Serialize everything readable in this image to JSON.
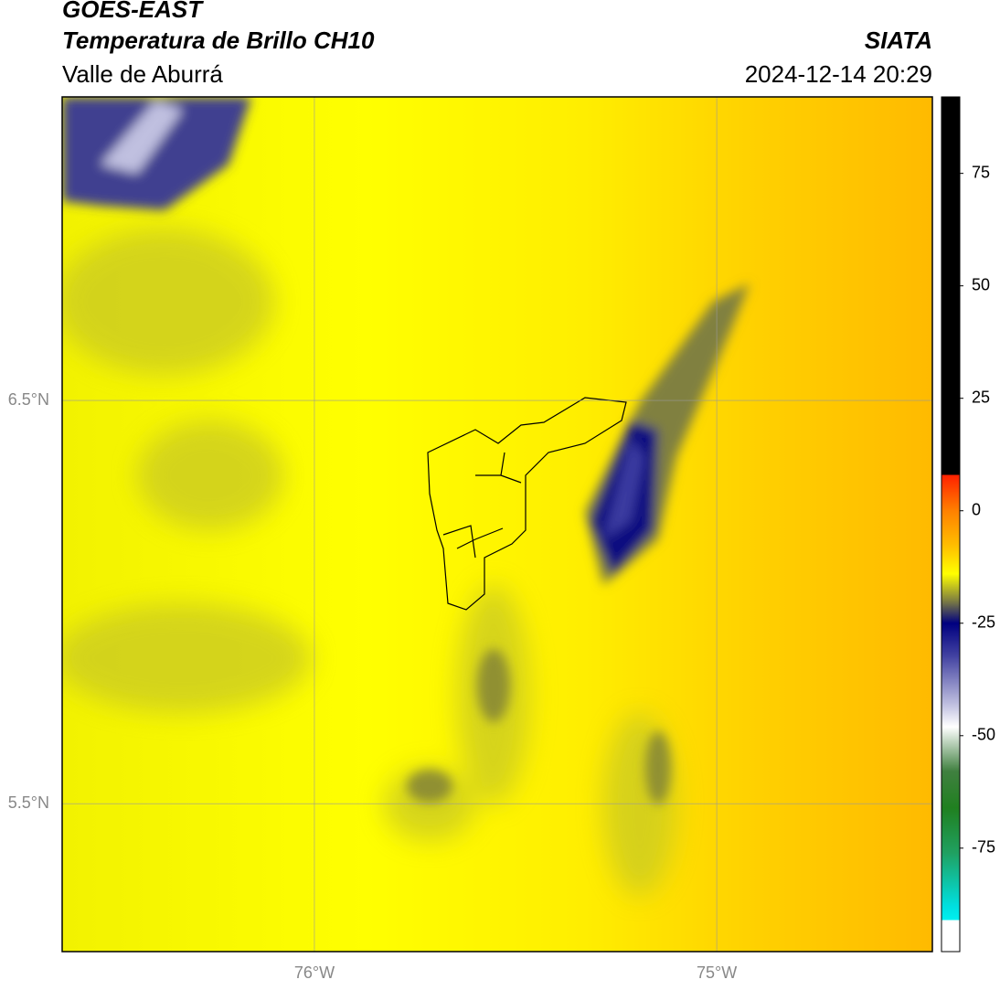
{
  "header": {
    "title": "GOES-EAST",
    "subtitle": "Temperatura de Brillo CH10",
    "region": "Valle de Aburrá",
    "source": "SIATA",
    "datetime": "2024-12-14 20:29"
  },
  "map": {
    "xlim": [
      -76.627,
      -74.464
    ],
    "ylim": [
      5.133,
      7.253
    ],
    "xticks": [
      {
        "value": -76,
        "label": "76°W"
      },
      {
        "value": -75,
        "label": "75°W"
      }
    ],
    "yticks": [
      {
        "value": 5.5,
        "label": "5.5°N"
      },
      {
        "value": 6.5,
        "label": "6.5°N"
      }
    ],
    "grid": true
  },
  "colorbar": {
    "clim": [
      -98,
      92
    ],
    "ticks": [
      -75,
      -50,
      -25,
      0,
      25,
      50,
      75
    ]
  }
}
